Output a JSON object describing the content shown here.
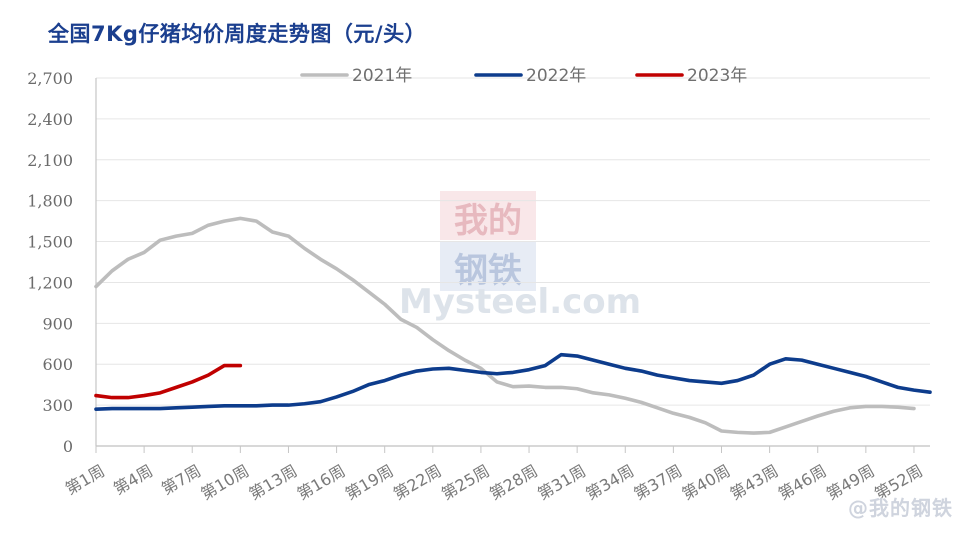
{
  "chart_data": {
    "type": "line",
    "title": "全国7Kg仔猪均价周度走势图（元/头）",
    "xlabel": "",
    "ylabel": "",
    "ylim": [
      0,
      2700
    ],
    "yticks": [
      "0",
      "300",
      "600",
      "900",
      "1,200",
      "1,500",
      "1,800",
      "2,100",
      "2,400",
      "2,700"
    ],
    "x_ticks": [
      "第1周",
      "第4周",
      "第7周",
      "第10周",
      "第13周",
      "第16周",
      "第19周",
      "第22周",
      "第25周",
      "第28周",
      "第31周",
      "第34周",
      "第37周",
      "第40周",
      "第43周",
      "第46周",
      "第49周",
      "第52周"
    ],
    "legend_position": "top",
    "series": [
      {
        "name": "2021年",
        "color": "#bdbdbd",
        "points": [
          [
            1,
            1170
          ],
          [
            2,
            1285
          ],
          [
            3,
            1370
          ],
          [
            4,
            1420
          ],
          [
            5,
            1510
          ],
          [
            6,
            1540
          ],
          [
            7,
            1560
          ],
          [
            8,
            1620
          ],
          [
            9,
            1650
          ],
          [
            10,
            1670
          ],
          [
            11,
            1650
          ],
          [
            12,
            1570
          ],
          [
            13,
            1540
          ],
          [
            14,
            1450
          ],
          [
            15,
            1370
          ],
          [
            16,
            1300
          ],
          [
            17,
            1220
          ],
          [
            18,
            1130
          ],
          [
            19,
            1040
          ],
          [
            20,
            930
          ],
          [
            21,
            870
          ],
          [
            22,
            780
          ],
          [
            23,
            700
          ],
          [
            24,
            630
          ],
          [
            25,
            570
          ],
          [
            26,
            470
          ],
          [
            27,
            435
          ],
          [
            28,
            440
          ],
          [
            29,
            430
          ],
          [
            30,
            430
          ],
          [
            31,
            420
          ],
          [
            32,
            390
          ],
          [
            33,
            375
          ],
          [
            34,
            350
          ],
          [
            35,
            320
          ],
          [
            36,
            280
          ],
          [
            37,
            240
          ],
          [
            38,
            210
          ],
          [
            39,
            170
          ],
          [
            40,
            110
          ],
          [
            41,
            100
          ],
          [
            42,
            95
          ],
          [
            43,
            100
          ],
          [
            44,
            140
          ],
          [
            45,
            180
          ],
          [
            46,
            220
          ],
          [
            47,
            255
          ],
          [
            48,
            280
          ],
          [
            49,
            290
          ],
          [
            50,
            290
          ],
          [
            51,
            285
          ],
          [
            52,
            275
          ]
        ]
      },
      {
        "name": "2022年",
        "color": "#0d3c8c",
        "points": [
          [
            1,
            270
          ],
          [
            2,
            275
          ],
          [
            3,
            275
          ],
          [
            4,
            275
          ],
          [
            5,
            275
          ],
          [
            6,
            280
          ],
          [
            7,
            285
          ],
          [
            8,
            290
          ],
          [
            9,
            295
          ],
          [
            10,
            295
          ],
          [
            11,
            295
          ],
          [
            12,
            300
          ],
          [
            13,
            300
          ],
          [
            14,
            310
          ],
          [
            15,
            325
          ],
          [
            16,
            360
          ],
          [
            17,
            400
          ],
          [
            18,
            450
          ],
          [
            19,
            480
          ],
          [
            20,
            520
          ],
          [
            21,
            550
          ],
          [
            22,
            565
          ],
          [
            23,
            570
          ],
          [
            24,
            555
          ],
          [
            25,
            540
          ],
          [
            26,
            530
          ],
          [
            27,
            540
          ],
          [
            28,
            560
          ],
          [
            29,
            590
          ],
          [
            30,
            670
          ],
          [
            31,
            660
          ],
          [
            32,
            630
          ],
          [
            33,
            600
          ],
          [
            34,
            570
          ],
          [
            35,
            550
          ],
          [
            36,
            520
          ],
          [
            37,
            500
          ],
          [
            38,
            480
          ],
          [
            39,
            470
          ],
          [
            40,
            460
          ],
          [
            41,
            480
          ],
          [
            42,
            520
          ],
          [
            43,
            600
          ],
          [
            44,
            640
          ],
          [
            45,
            630
          ],
          [
            46,
            600
          ],
          [
            47,
            570
          ],
          [
            48,
            540
          ],
          [
            49,
            510
          ],
          [
            50,
            470
          ],
          [
            51,
            430
          ],
          [
            52,
            410
          ],
          [
            53,
            395
          ]
        ]
      },
      {
        "name": "2023年",
        "color": "#c00000",
        "points": [
          [
            1,
            370
          ],
          [
            2,
            355
          ],
          [
            3,
            355
          ],
          [
            4,
            370
          ],
          [
            5,
            390
          ],
          [
            6,
            430
          ],
          [
            7,
            470
          ],
          [
            8,
            520
          ],
          [
            9,
            590
          ],
          [
            10,
            590
          ]
        ]
      }
    ],
    "watermark": {
      "cn_top": "我的",
      "cn_bottom": "钢铁",
      "en": "Mysteel.com"
    },
    "footer_watermark": "@我的钢铁"
  }
}
